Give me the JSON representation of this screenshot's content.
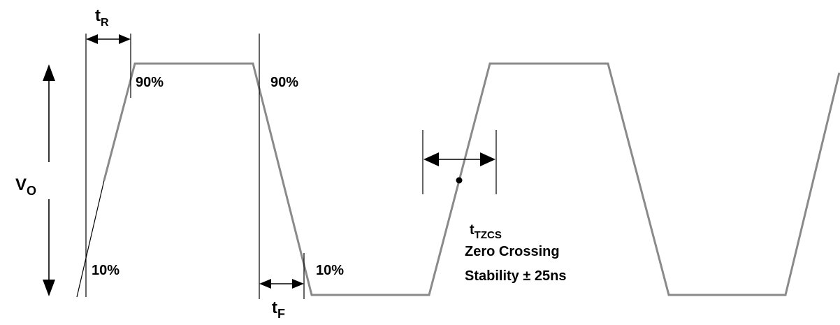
{
  "labels": {
    "rise_time_main": "t",
    "rise_time_sub": "R",
    "fall_time_main": "t",
    "fall_time_sub": "F",
    "output_voltage_main": "V",
    "output_voltage_sub": "O",
    "pct_90_left": "90%",
    "pct_90_right": "90%",
    "pct_10_left": "10%",
    "pct_10_right": "10%",
    "tzcs_main": "t",
    "tzcs_sub": "TZCS",
    "zero_crossing_line1": "Zero Crossing",
    "zero_crossing_line2": "Stability ± 25ns"
  },
  "colors": {
    "waveform": "#8a8a8a",
    "annotation": "#000000"
  }
}
